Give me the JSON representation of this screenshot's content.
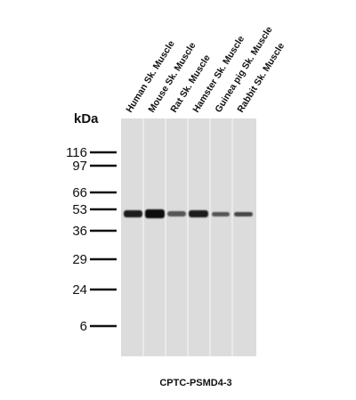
{
  "unit_label": "kDa",
  "lanes": [
    "Human Sk. Muscle",
    "Mouse Sk. Muscle",
    "Rat Sk. Muscle",
    "Hamster Sk. Muscle",
    "Guinea pig Sk. Muscle",
    "Rabbit Sk. Muscle"
  ],
  "markers": [
    "116",
    "97",
    "66",
    "53",
    "36",
    "29",
    "24",
    "6"
  ],
  "caption": "CPTC-PSMD4-3"
}
